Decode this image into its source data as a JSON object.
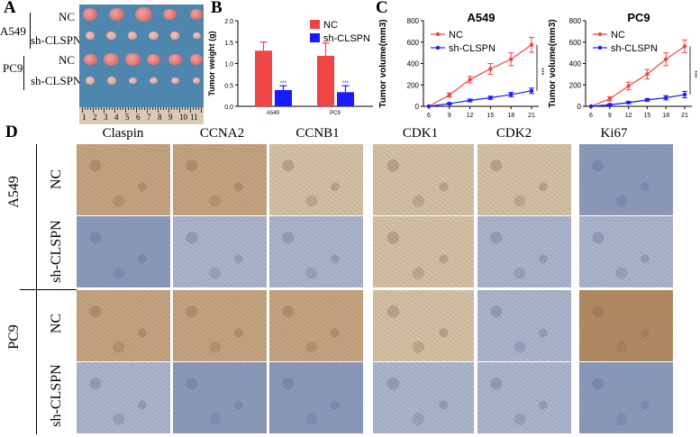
{
  "panels": {
    "A": "A",
    "B": "B",
    "C": "C",
    "D": "D"
  },
  "panel_a": {
    "cell_lines": [
      "A549",
      "PC9"
    ],
    "groups": [
      "NC",
      "sh-CLSPN",
      "NC",
      "sh-CLSPN"
    ],
    "ruler_numbers": [
      "1",
      "2",
      "3",
      "4",
      "5",
      "6",
      "7",
      "8",
      "9",
      "10",
      "11"
    ]
  },
  "chart_data": [
    {
      "type": "bar",
      "ylabel": "Tumor weight (g)",
      "categories": [
        "A549",
        "PC9"
      ],
      "ylim": [
        0,
        2.0
      ],
      "yticks": [
        "0.0",
        "0.5",
        "1.0",
        "1.5",
        "2.0"
      ],
      "series": [
        {
          "name": "NC",
          "color": "#f04545",
          "values": [
            1.3,
            1.18
          ],
          "errors": [
            0.2,
            0.3
          ]
        },
        {
          "name": "sh-CLSPN",
          "color": "#1a1aff",
          "values": [
            0.38,
            0.33
          ],
          "errors": [
            0.1,
            0.15
          ]
        }
      ],
      "significance": [
        "***",
        "***"
      ],
      "legend": "top-right"
    },
    {
      "type": "line",
      "title": "A549",
      "ylabel": "Tumor volume(mm3)",
      "x": [
        6,
        9,
        12,
        15,
        18,
        21
      ],
      "ylim": [
        0,
        800
      ],
      "yticks": [
        "0",
        "200",
        "400",
        "600",
        "800"
      ],
      "series": [
        {
          "name": "NC",
          "color": "#f04545",
          "values": [
            0,
            105,
            250,
            350,
            440,
            575
          ],
          "errors": [
            0,
            20,
            30,
            50,
            60,
            70
          ]
        },
        {
          "name": "sh-CLSPN",
          "color": "#1a1aff",
          "values": [
            0,
            25,
            55,
            80,
            110,
            145
          ],
          "errors": [
            0,
            8,
            12,
            15,
            20,
            25
          ]
        }
      ],
      "significance": "***",
      "legend": "top-left"
    },
    {
      "type": "line",
      "title": "PC9",
      "ylabel": "Tumor volume(mm3)",
      "x": [
        6,
        9,
        12,
        15,
        18,
        21
      ],
      "ylim": [
        0,
        800
      ],
      "yticks": [
        "0",
        "200",
        "400",
        "600",
        "800"
      ],
      "series": [
        {
          "name": "NC",
          "color": "#f04545",
          "values": [
            0,
            70,
            190,
            300,
            440,
            560
          ],
          "errors": [
            0,
            20,
            35,
            45,
            60,
            60
          ]
        },
        {
          "name": "sh-CLSPN",
          "color": "#1a1aff",
          "values": [
            0,
            15,
            35,
            60,
            80,
            110
          ],
          "errors": [
            0,
            8,
            10,
            12,
            20,
            30
          ]
        }
      ],
      "significance": "***",
      "legend": "top-left"
    }
  ],
  "panel_d": {
    "columns": [
      "Claspin",
      "CCNA2",
      "CCNB1",
      "CDK1",
      "CDK2",
      "Ki67"
    ],
    "row_labels": [
      "NC",
      "sh-CLSPN",
      "NC",
      "sh-CLSPN"
    ],
    "cell_lines": [
      "A549",
      "PC9"
    ],
    "stain_colors": {
      "strong_brown": "#b08a62",
      "mid_brown": "#c2a27f",
      "weak_brown": "#d2c0a4",
      "blue": "#8c98b8",
      "light_blue": "#aab3c8"
    }
  }
}
